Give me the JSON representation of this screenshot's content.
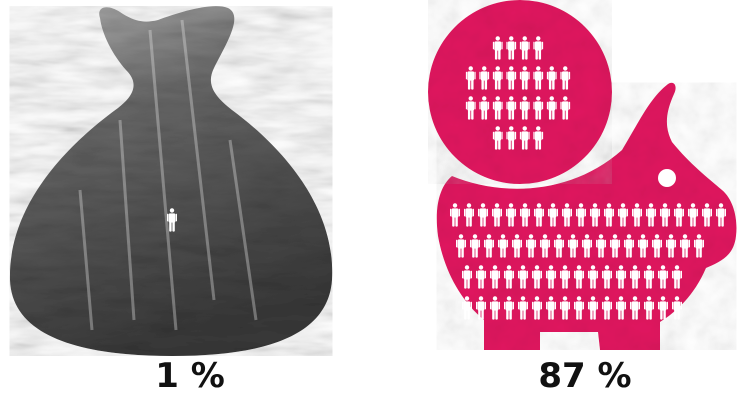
{
  "panels": [
    {
      "percentage": "1 %",
      "shape": "money-bag",
      "fill": "forest-photo-grayscale",
      "people_shown": 1,
      "colors": {
        "dark": "#3a3a3a",
        "mid": "#6a6a6a",
        "light": "#b5b5b5"
      }
    },
    {
      "percentage": "87 %",
      "shape": "piggy-bank-with-coin",
      "fill": "textured-magenta",
      "people_in_coin": 24,
      "people_in_body": 70,
      "colors": {
        "fill": "#e0185f",
        "fill_dark": "#c20f50"
      }
    }
  ],
  "colors": {
    "person_icon": "#ffffff",
    "text": "#111111",
    "background": "#ffffff"
  }
}
